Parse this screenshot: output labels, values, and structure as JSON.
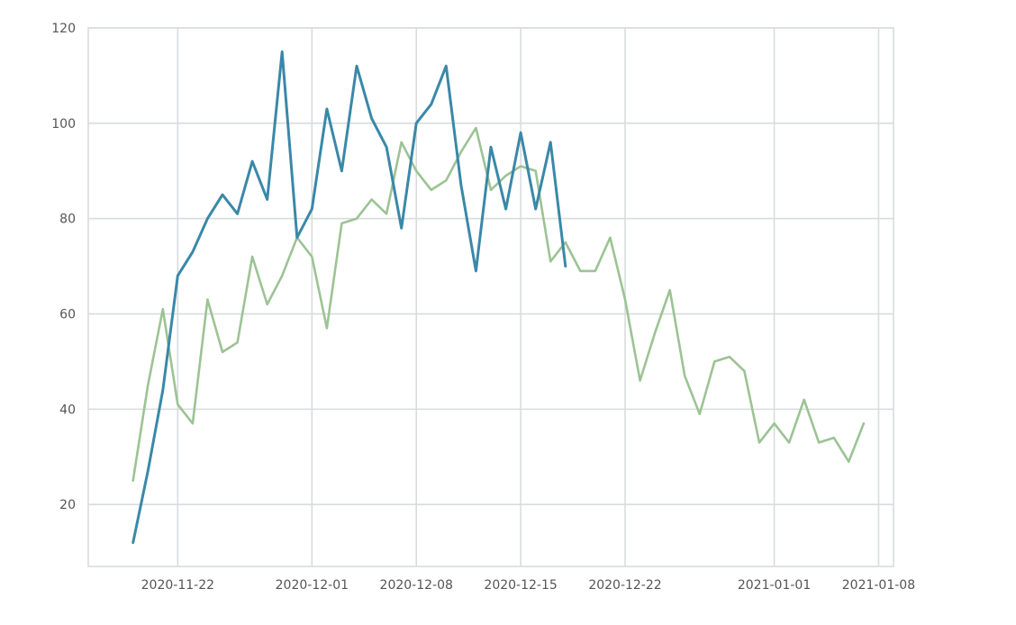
{
  "chart_data": {
    "type": "line",
    "title": "",
    "xlabel": "",
    "ylabel": "",
    "grid": true,
    "legend": "none",
    "xlim": [
      "2020-11-16",
      "2021-01-09"
    ],
    "ylim": [
      7,
      120
    ],
    "y_ticks": [
      20,
      40,
      60,
      80,
      100,
      120
    ],
    "x_ticks": [
      "2020-11-22",
      "2020-12-01",
      "2020-12-08",
      "2020-12-15",
      "2020-12-22",
      "2021-01-01",
      "2021-01-08"
    ],
    "series": [
      {
        "color": "#3a88a8",
        "x": [
          "2020-11-19",
          "2020-11-20",
          "2020-11-21",
          "2020-11-22",
          "2020-11-23",
          "2020-11-24",
          "2020-11-25",
          "2020-11-26",
          "2020-11-27",
          "2020-11-28",
          "2020-11-29",
          "2020-11-30",
          "2020-12-01",
          "2020-12-02",
          "2020-12-03",
          "2020-12-04",
          "2020-12-05",
          "2020-12-06",
          "2020-12-07",
          "2020-12-08",
          "2020-12-09",
          "2020-12-10",
          "2020-12-11",
          "2020-12-12",
          "2020-12-13",
          "2020-12-14",
          "2020-12-15",
          "2020-12-16",
          "2020-12-17",
          "2020-12-18"
        ],
        "y": [
          12,
          27,
          44,
          68,
          73,
          80,
          85,
          81,
          92,
          84,
          115,
          76,
          82,
          103,
          90,
          112,
          101,
          95,
          78,
          100,
          104,
          112,
          87,
          69,
          95,
          82,
          98,
          82,
          96,
          70
        ]
      },
      {
        "color": "#9cc394",
        "x": [
          "2020-11-19",
          "2020-11-20",
          "2020-11-21",
          "2020-11-22",
          "2020-11-23",
          "2020-11-24",
          "2020-11-25",
          "2020-11-26",
          "2020-11-27",
          "2020-11-28",
          "2020-11-29",
          "2020-11-30",
          "2020-12-01",
          "2020-12-02",
          "2020-12-03",
          "2020-12-04",
          "2020-12-05",
          "2020-12-06",
          "2020-12-07",
          "2020-12-08",
          "2020-12-09",
          "2020-12-10",
          "2020-12-11",
          "2020-12-12",
          "2020-12-13",
          "2020-12-14",
          "2020-12-15",
          "2020-12-16",
          "2020-12-17",
          "2020-12-18",
          "2020-12-19",
          "2020-12-20",
          "2020-12-21",
          "2020-12-22",
          "2020-12-23",
          "2020-12-24",
          "2020-12-25",
          "2020-12-26",
          "2020-12-27",
          "2020-12-28",
          "2020-12-29",
          "2020-12-30",
          "2020-12-31",
          "2021-01-01",
          "2021-01-02",
          "2021-01-03",
          "2021-01-04",
          "2021-01-05",
          "2021-01-06",
          "2021-01-07"
        ],
        "y": [
          25,
          45,
          61,
          41,
          37,
          63,
          52,
          54,
          72,
          62,
          68,
          76,
          72,
          57,
          79,
          80,
          84,
          81,
          96,
          90,
          86,
          88,
          94,
          99,
          86,
          89,
          91,
          90,
          71,
          75,
          69,
          69,
          76,
          63,
          46,
          56,
          65,
          47,
          39,
          50,
          51,
          48,
          33,
          37,
          33,
          42,
          33,
          34,
          29,
          37
        ]
      }
    ]
  }
}
